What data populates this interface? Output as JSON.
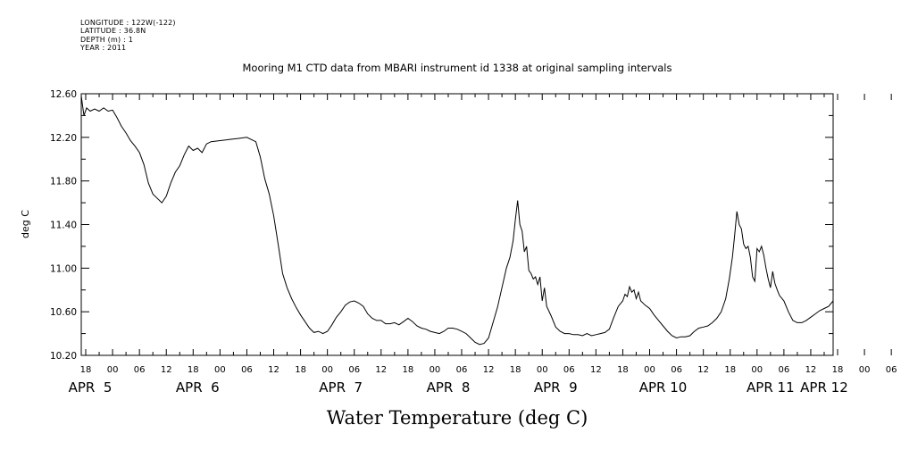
{
  "header": {
    "meta": [
      "LONGITUDE : 122W(-122)",
      "LATITUDE : 36.8N",
      "DEPTH (m) : 1",
      "YEAR : 2011"
    ]
  },
  "chart_data": {
    "type": "line",
    "title": "Mooring M1 CTD data from MBARI instrument id 1338 at original sampling intervals",
    "xlabel": "Water Temperature (deg C)",
    "ylabel": "deg C",
    "ylim": [
      10.2,
      12.6
    ],
    "yticks": [
      "10.20",
      "10.60",
      "11.00",
      "11.40",
      "11.80",
      "12.20",
      "12.60"
    ],
    "x_units": "hours since APR 5 00:00, 2011",
    "xlim": [
      17,
      185
    ],
    "x_hour_labels": [
      "18",
      "00",
      "06",
      "12",
      "18",
      "00",
      "06",
      "12",
      "18",
      "00",
      "06",
      "12",
      "18",
      "00",
      "06",
      "12",
      "18",
      "00",
      "06",
      "12",
      "18",
      "00",
      "06",
      "12",
      "18",
      "00",
      "06",
      "12",
      "18",
      "00",
      "06",
      "12"
    ],
    "x_day_labels": [
      "APR  5",
      "APR  6",
      "APR  7",
      "APR  8",
      "APR  9",
      "APR 10",
      "APR 11",
      "APR 12"
    ],
    "grid": false,
    "series": [
      {
        "color": "#000000",
        "points": [
          [
            17,
            12.58
          ],
          [
            17.6,
            12.4
          ],
          [
            18.2,
            12.47
          ],
          [
            19,
            12.44
          ],
          [
            20,
            12.46
          ],
          [
            21,
            12.44
          ],
          [
            22,
            12.47
          ],
          [
            23,
            12.44
          ],
          [
            24,
            12.45
          ],
          [
            25,
            12.38
          ],
          [
            26,
            12.3
          ],
          [
            27,
            12.24
          ],
          [
            28,
            12.17
          ],
          [
            29,
            12.12
          ],
          [
            30,
            12.06
          ],
          [
            31,
            11.95
          ],
          [
            32,
            11.78
          ],
          [
            33,
            11.68
          ],
          [
            34,
            11.64
          ],
          [
            35,
            11.6
          ],
          [
            36,
            11.66
          ],
          [
            37,
            11.78
          ],
          [
            38,
            11.88
          ],
          [
            39,
            11.94
          ],
          [
            40,
            12.04
          ],
          [
            41,
            12.12
          ],
          [
            42,
            12.08
          ],
          [
            43,
            12.1
          ],
          [
            44,
            12.06
          ],
          [
            45,
            12.14
          ],
          [
            46,
            12.16
          ],
          [
            48,
            12.17
          ],
          [
            50,
            12.18
          ],
          [
            52,
            12.19
          ],
          [
            54,
            12.2
          ],
          [
            55,
            12.18
          ],
          [
            56,
            12.16
          ],
          [
            57,
            12.02
          ],
          [
            58,
            11.82
          ],
          [
            59,
            11.68
          ],
          [
            60,
            11.48
          ],
          [
            61,
            11.22
          ],
          [
            62,
            10.95
          ],
          [
            63,
            10.82
          ],
          [
            64,
            10.72
          ],
          [
            65,
            10.64
          ],
          [
            66,
            10.57
          ],
          [
            67,
            10.51
          ],
          [
            68,
            10.45
          ],
          [
            69,
            10.41
          ],
          [
            70,
            10.42
          ],
          [
            71,
            10.4
          ],
          [
            72,
            10.42
          ],
          [
            73,
            10.48
          ],
          [
            74,
            10.55
          ],
          [
            75,
            10.6
          ],
          [
            76,
            10.66
          ],
          [
            77,
            10.69
          ],
          [
            78,
            10.7
          ],
          [
            79,
            10.68
          ],
          [
            80,
            10.65
          ],
          [
            81,
            10.58
          ],
          [
            82,
            10.54
          ],
          [
            83,
            10.52
          ],
          [
            84,
            10.52
          ],
          [
            85,
            10.49
          ],
          [
            86,
            10.49
          ],
          [
            87,
            10.5
          ],
          [
            88,
            10.48
          ],
          [
            89,
            10.51
          ],
          [
            90,
            10.54
          ],
          [
            91,
            10.51
          ],
          [
            92,
            10.47
          ],
          [
            93,
            10.45
          ],
          [
            94,
            10.44
          ],
          [
            95,
            10.42
          ],
          [
            96,
            10.41
          ],
          [
            97,
            10.4
          ],
          [
            98,
            10.42
          ],
          [
            99,
            10.45
          ],
          [
            100,
            10.45
          ],
          [
            101,
            10.44
          ],
          [
            102,
            10.42
          ],
          [
            103,
            10.4
          ],
          [
            104,
            10.36
          ],
          [
            105,
            10.32
          ],
          [
            106,
            10.3
          ],
          [
            107,
            10.31
          ],
          [
            108,
            10.36
          ],
          [
            109,
            10.5
          ],
          [
            110,
            10.64
          ],
          [
            111,
            10.82
          ],
          [
            112,
            11.0
          ],
          [
            112.8,
            11.1
          ],
          [
            113.5,
            11.25
          ],
          [
            114,
            11.45
          ],
          [
            114.5,
            11.62
          ],
          [
            115,
            11.4
          ],
          [
            115.5,
            11.34
          ],
          [
            116,
            11.15
          ],
          [
            116.5,
            11.2
          ],
          [
            117,
            10.98
          ],
          [
            117.5,
            10.95
          ],
          [
            118,
            10.9
          ],
          [
            118.5,
            10.92
          ],
          [
            119,
            10.85
          ],
          [
            119.5,
            10.92
          ],
          [
            120,
            10.7
          ],
          [
            120.5,
            10.82
          ],
          [
            121,
            10.65
          ],
          [
            122,
            10.56
          ],
          [
            123,
            10.46
          ],
          [
            124,
            10.42
          ],
          [
            125,
            10.4
          ],
          [
            126,
            10.4
          ],
          [
            127,
            10.39
          ],
          [
            128,
            10.39
          ],
          [
            129,
            10.38
          ],
          [
            130,
            10.4
          ],
          [
            131,
            10.38
          ],
          [
            132,
            10.39
          ],
          [
            133,
            10.4
          ],
          [
            134,
            10.41
          ],
          [
            135,
            10.44
          ],
          [
            136,
            10.55
          ],
          [
            137,
            10.65
          ],
          [
            138,
            10.7
          ],
          [
            138.5,
            10.76
          ],
          [
            139,
            10.74
          ],
          [
            139.5,
            10.83
          ],
          [
            140,
            10.78
          ],
          [
            140.5,
            10.8
          ],
          [
            141,
            10.72
          ],
          [
            141.5,
            10.78
          ],
          [
            142,
            10.7
          ],
          [
            143,
            10.66
          ],
          [
            144,
            10.63
          ],
          [
            145,
            10.57
          ],
          [
            146,
            10.52
          ],
          [
            147,
            10.47
          ],
          [
            148,
            10.42
          ],
          [
            149,
            10.38
          ],
          [
            150,
            10.36
          ],
          [
            151,
            10.37
          ],
          [
            152,
            10.37
          ],
          [
            153,
            10.38
          ],
          [
            154,
            10.42
          ],
          [
            155,
            10.45
          ],
          [
            156,
            10.46
          ],
          [
            157,
            10.47
          ],
          [
            158,
            10.5
          ],
          [
            159,
            10.54
          ],
          [
            160,
            10.6
          ],
          [
            161,
            10.72
          ],
          [
            161.8,
            10.9
          ],
          [
            162.5,
            11.1
          ],
          [
            163,
            11.3
          ],
          [
            163.5,
            11.52
          ],
          [
            164,
            11.4
          ],
          [
            164.5,
            11.36
          ],
          [
            165,
            11.22
          ],
          [
            165.5,
            11.18
          ],
          [
            166,
            11.2
          ],
          [
            166.5,
            11.1
          ],
          [
            167,
            10.92
          ],
          [
            167.5,
            10.88
          ],
          [
            168,
            11.18
          ],
          [
            168.5,
            11.15
          ],
          [
            169,
            11.2
          ],
          [
            169.5,
            11.12
          ],
          [
            170,
            11.0
          ],
          [
            170.5,
            10.9
          ],
          [
            171,
            10.82
          ],
          [
            171.5,
            10.97
          ],
          [
            172,
            10.86
          ],
          [
            172.5,
            10.8
          ],
          [
            173,
            10.75
          ],
          [
            174,
            10.7
          ],
          [
            175,
            10.6
          ],
          [
            176,
            10.52
          ],
          [
            177,
            10.5
          ],
          [
            178,
            10.5
          ],
          [
            179,
            10.52
          ],
          [
            180,
            10.55
          ],
          [
            181,
            10.58
          ],
          [
            182,
            10.61
          ],
          [
            183,
            10.63
          ],
          [
            184,
            10.65
          ],
          [
            185,
            10.7
          ]
        ]
      }
    ]
  }
}
